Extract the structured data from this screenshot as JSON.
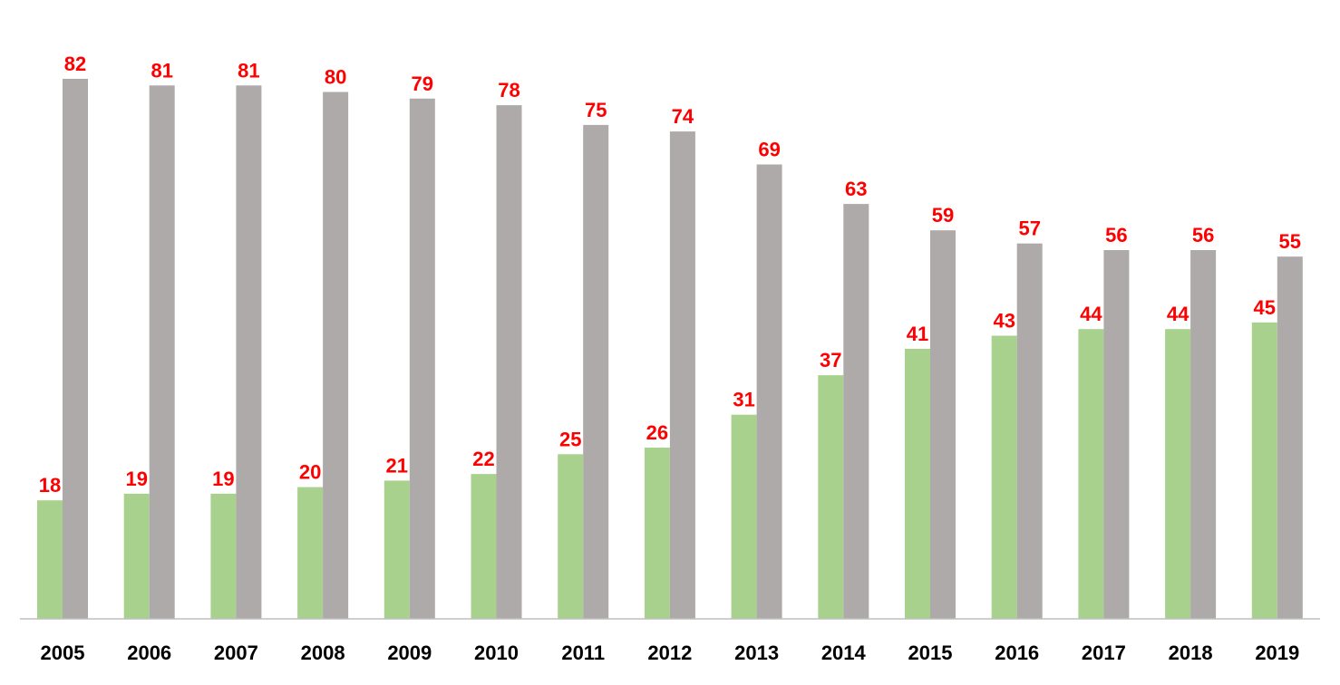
{
  "chart_data": {
    "type": "bar",
    "title": "",
    "xlabel": "",
    "ylabel": "",
    "categories": [
      "2005",
      "2006",
      "2007",
      "2008",
      "2009",
      "2010",
      "2011",
      "2012",
      "2013",
      "2014",
      "2015",
      "2016",
      "2017",
      "2018",
      "2019"
    ],
    "series": [
      {
        "values": [
          18,
          19,
          19,
          20,
          21,
          22,
          25,
          26,
          31,
          37,
          41,
          43,
          44,
          44,
          45
        ],
        "color": "#a9d18e"
      },
      {
        "values": [
          82,
          81,
          81,
          80,
          79,
          78,
          75,
          74,
          69,
          63,
          59,
          57,
          56,
          56,
          55
        ],
        "color": "#aeaaaa"
      }
    ],
    "ylim": [
      0,
      82
    ],
    "grid": false,
    "legend": "none",
    "data_label_color": "#ff0000",
    "axis_color": "#bfbfbf"
  }
}
